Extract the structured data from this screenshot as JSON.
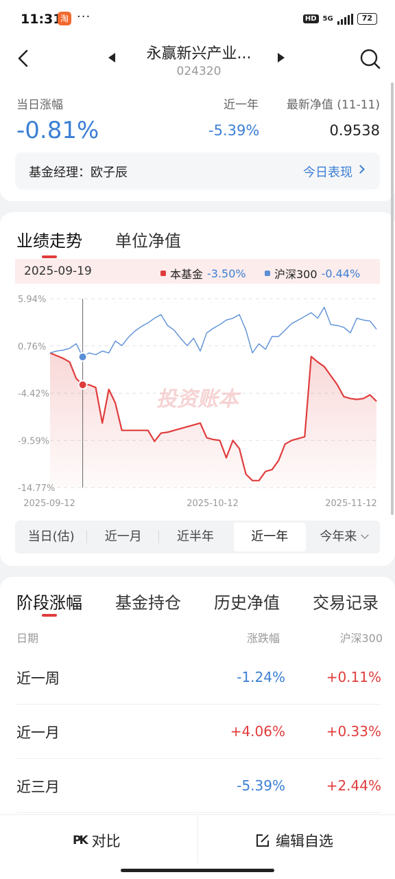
{
  "status": {
    "time": "11:31",
    "app_badge": "淘",
    "more": "···",
    "hd": "HD",
    "signal": "5G",
    "battery": "72"
  },
  "header": {
    "title": "永赢新兴产业...",
    "code": "024320"
  },
  "summary": {
    "day_label": "当日涨幅",
    "day_value": "-0.81%",
    "year_label": "近一年",
    "year_value": "-5.39%",
    "nav_label": "最新净值 (11-11)",
    "nav_value": "0.9538",
    "manager": "基金经理：欧子辰",
    "today_link": "今日表现"
  },
  "chart_tabs": {
    "perf": "业绩走势",
    "unit": "单位净值"
  },
  "legend": {
    "date": "2025-09-19",
    "fund_name": "本基金",
    "fund_value": "-3.50%",
    "index_name": "沪深300",
    "index_value": "-0.44%"
  },
  "watermark": "投资账本",
  "ranges": [
    "当日(估)",
    "近一月",
    "近半年",
    "近一年",
    "今年来"
  ],
  "selected_range": "近一年",
  "chart_data": {
    "type": "line",
    "y_ticks": [
      "5.94%",
      "0.76%",
      "-4.42%",
      "-9.59%",
      "-14.77%"
    ],
    "x_ticks": [
      "2025-09-12",
      "2025-10-12",
      "2025-11-12"
    ],
    "ylim": [
      -14.77,
      5.94
    ],
    "cursor_date": "2025-09-19",
    "series": [
      {
        "name": "本基金",
        "color": "#e03c3c",
        "values": [
          0.0,
          -0.3,
          -0.6,
          -1.0,
          -2.8,
          -3.5,
          -3.5,
          -3.8,
          -7.7,
          -4.0,
          -5.5,
          -8.5,
          -8.5,
          -8.5,
          -8.5,
          -8.5,
          -9.7,
          -8.8,
          -8.7,
          -8.5,
          -8.3,
          -8.1,
          -7.9,
          -7.7,
          -9.3,
          -9.5,
          -9.6,
          -11.5,
          -9.6,
          -10.5,
          -13.3,
          -14.0,
          -14.0,
          -13.0,
          -12.8,
          -11.8,
          -10.0,
          -9.6,
          -9.4,
          -9.2,
          -0.4,
          -1.0,
          -1.5,
          -2.5,
          -3.5,
          -4.8,
          -5.0,
          -5.1,
          -5.0,
          -4.6,
          -5.3
        ],
        "dates": []
      },
      {
        "name": "沪深300",
        "color": "#5b8fd6",
        "values": [
          0.0,
          0.2,
          0.3,
          0.5,
          1.0,
          -0.44,
          0.0,
          -0.2,
          0.2,
          0.0,
          1.3,
          0.8,
          1.7,
          2.4,
          2.9,
          3.3,
          3.8,
          4.2,
          3.0,
          2.5,
          1.6,
          0.8,
          1.6,
          0.2,
          2.2,
          2.7,
          3.1,
          3.6,
          3.8,
          4.2,
          2.5,
          0.0,
          1.0,
          0.4,
          1.8,
          1.8,
          2.5,
          3.2,
          3.6,
          4.0,
          4.4,
          3.8,
          5.0,
          3.1,
          3.0,
          2.8,
          2.2,
          3.8,
          3.6,
          3.5,
          2.6
        ],
        "dates": []
      }
    ]
  },
  "stats_tabs": [
    "阶段涨幅",
    "基金持仓",
    "历史净值",
    "交易记录"
  ],
  "stats_columns": {
    "date": "日期",
    "change": "涨跌幅",
    "index": "沪深300"
  },
  "stats_rows": [
    {
      "period": "近一周",
      "change": "-1.24%",
      "index": "+0.11%"
    },
    {
      "period": "近一月",
      "change": "+4.06%",
      "index": "+0.33%"
    },
    {
      "period": "近三月",
      "change": "-5.39%",
      "index": "+2.44%"
    }
  ],
  "bottom": {
    "compare": "对比",
    "edit": "编辑自选",
    "pk_icon": "PK"
  }
}
